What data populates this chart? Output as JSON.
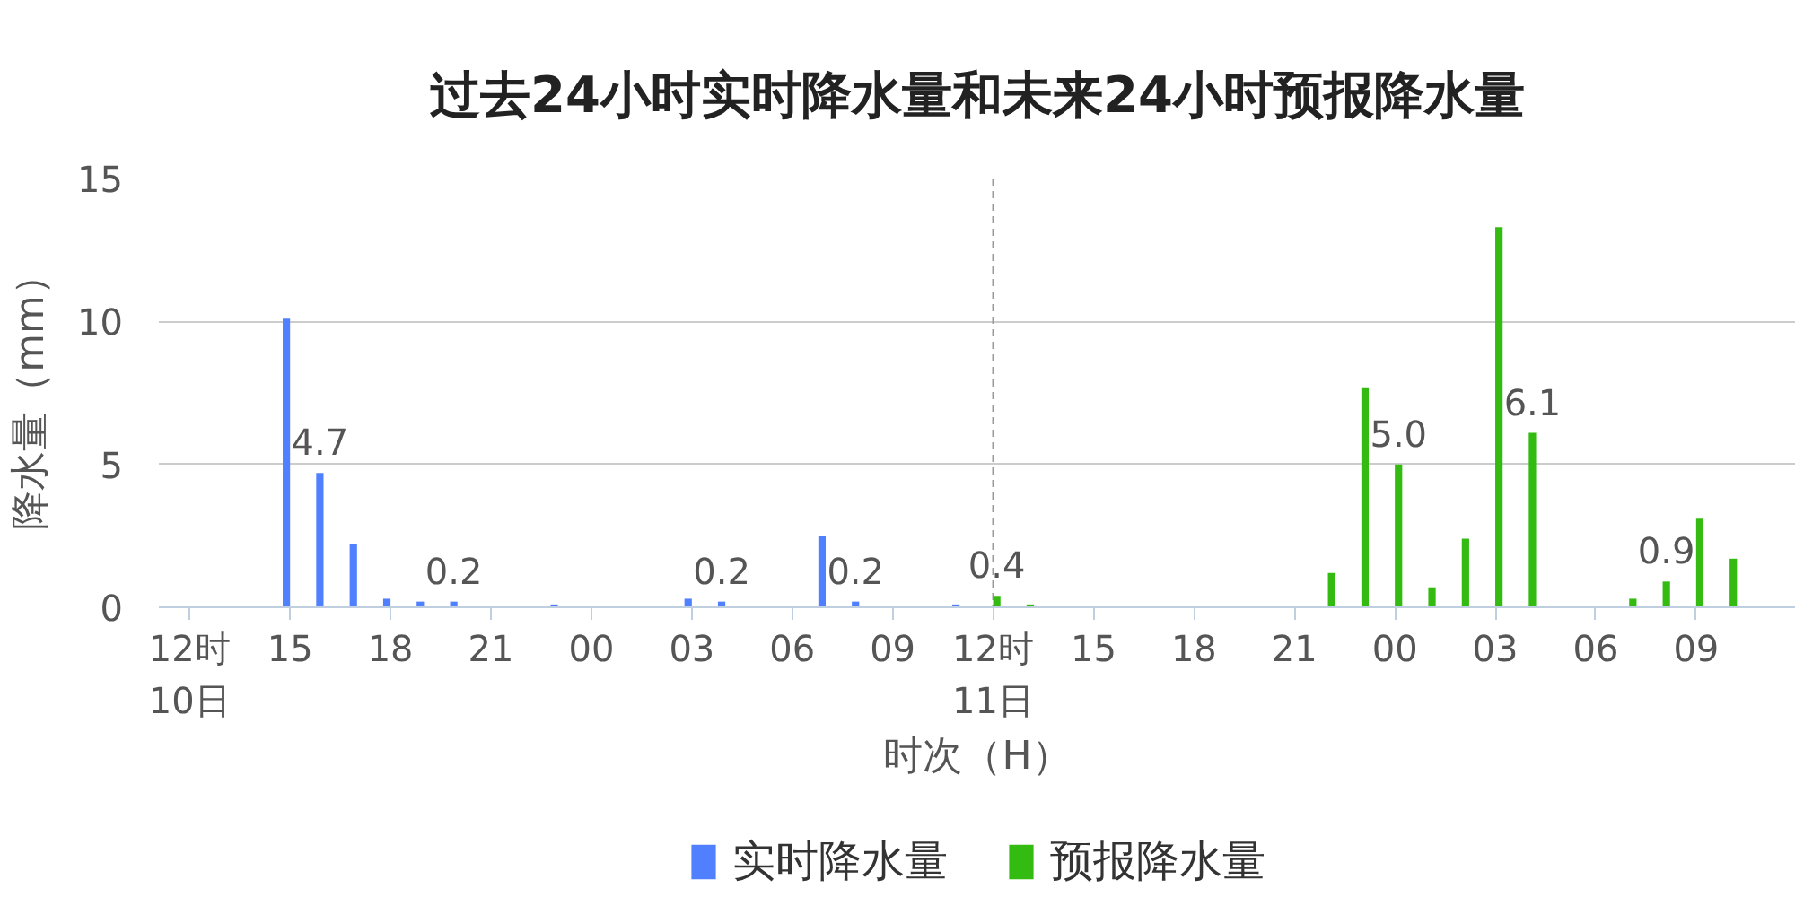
{
  "chart_data": {
    "type": "bar",
    "title": "过去24小时实时降水量和未来24小时预报降水量",
    "xlabel": "时次（H）",
    "ylabel": "降水量（mm）",
    "categories": [
      "12时\n10日",
      null,
      null,
      "15",
      null,
      null,
      "18",
      null,
      null,
      "21",
      null,
      null,
      "00",
      null,
      null,
      "03",
      null,
      null,
      "06",
      null,
      null,
      "09",
      null,
      null,
      "12时\n11日",
      null,
      null,
      "15",
      null,
      null,
      "18",
      null,
      null,
      "21",
      null,
      null,
      "00",
      null,
      null,
      "03",
      null,
      null,
      "06",
      null,
      null,
      "09",
      null,
      null
    ],
    "ylim": [
      0,
      15
    ],
    "yticks": [
      0,
      5,
      10,
      15
    ],
    "grid": "y",
    "legend": "bottom",
    "ref_lines": [
      {
        "axis": "x",
        "value": "12时\n11日",
        "color": "#999999",
        "line_style": "dashed"
      }
    ],
    "series": [
      {
        "name": "实时降水量",
        "color": "#5080ff",
        "values": [
          null,
          null,
          null,
          10.1,
          4.7,
          2.2,
          0.3,
          0.2,
          0.2,
          null,
          null,
          0.1,
          null,
          null,
          null,
          0.3,
          0.2,
          null,
          null,
          2.5,
          0.2,
          null,
          null,
          0.1,
          null,
          null,
          null,
          null,
          null,
          null,
          null,
          null,
          null,
          null,
          null,
          null,
          null,
          null,
          null,
          null,
          null,
          null,
          null,
          null,
          null,
          null,
          null,
          null
        ],
        "value_labels": [
          null,
          null,
          null,
          null,
          "4.7",
          null,
          null,
          null,
          "0.2",
          null,
          null,
          null,
          null,
          null,
          null,
          null,
          "0.2",
          null,
          null,
          null,
          "0.2",
          null,
          null,
          null,
          null,
          null,
          null,
          null,
          null,
          null,
          null,
          null,
          null,
          null,
          null,
          null,
          null,
          null,
          null,
          null,
          null,
          null,
          null,
          null,
          null,
          null,
          null,
          null
        ]
      },
      {
        "name": "预报降水量",
        "color": "#33bb11",
        "values": [
          null,
          null,
          null,
          null,
          null,
          null,
          null,
          null,
          null,
          null,
          null,
          null,
          null,
          null,
          null,
          null,
          null,
          null,
          null,
          null,
          null,
          null,
          null,
          null,
          0.4,
          0.1,
          null,
          null,
          null,
          null,
          null,
          null,
          null,
          null,
          1.2,
          7.7,
          5.0,
          0.7,
          2.4,
          13.3,
          6.1,
          null,
          null,
          0.3,
          0.9,
          3.1,
          1.7,
          null
        ],
        "value_labels": [
          null,
          null,
          null,
          null,
          null,
          null,
          null,
          null,
          null,
          null,
          null,
          null,
          null,
          null,
          null,
          null,
          null,
          null,
          null,
          null,
          null,
          null,
          null,
          null,
          "0.4",
          null,
          null,
          null,
          null,
          null,
          null,
          null,
          null,
          null,
          null,
          null,
          "5.0",
          null,
          null,
          null,
          "6.1",
          null,
          null,
          null,
          "0.9",
          null,
          null,
          null
        ]
      }
    ]
  }
}
